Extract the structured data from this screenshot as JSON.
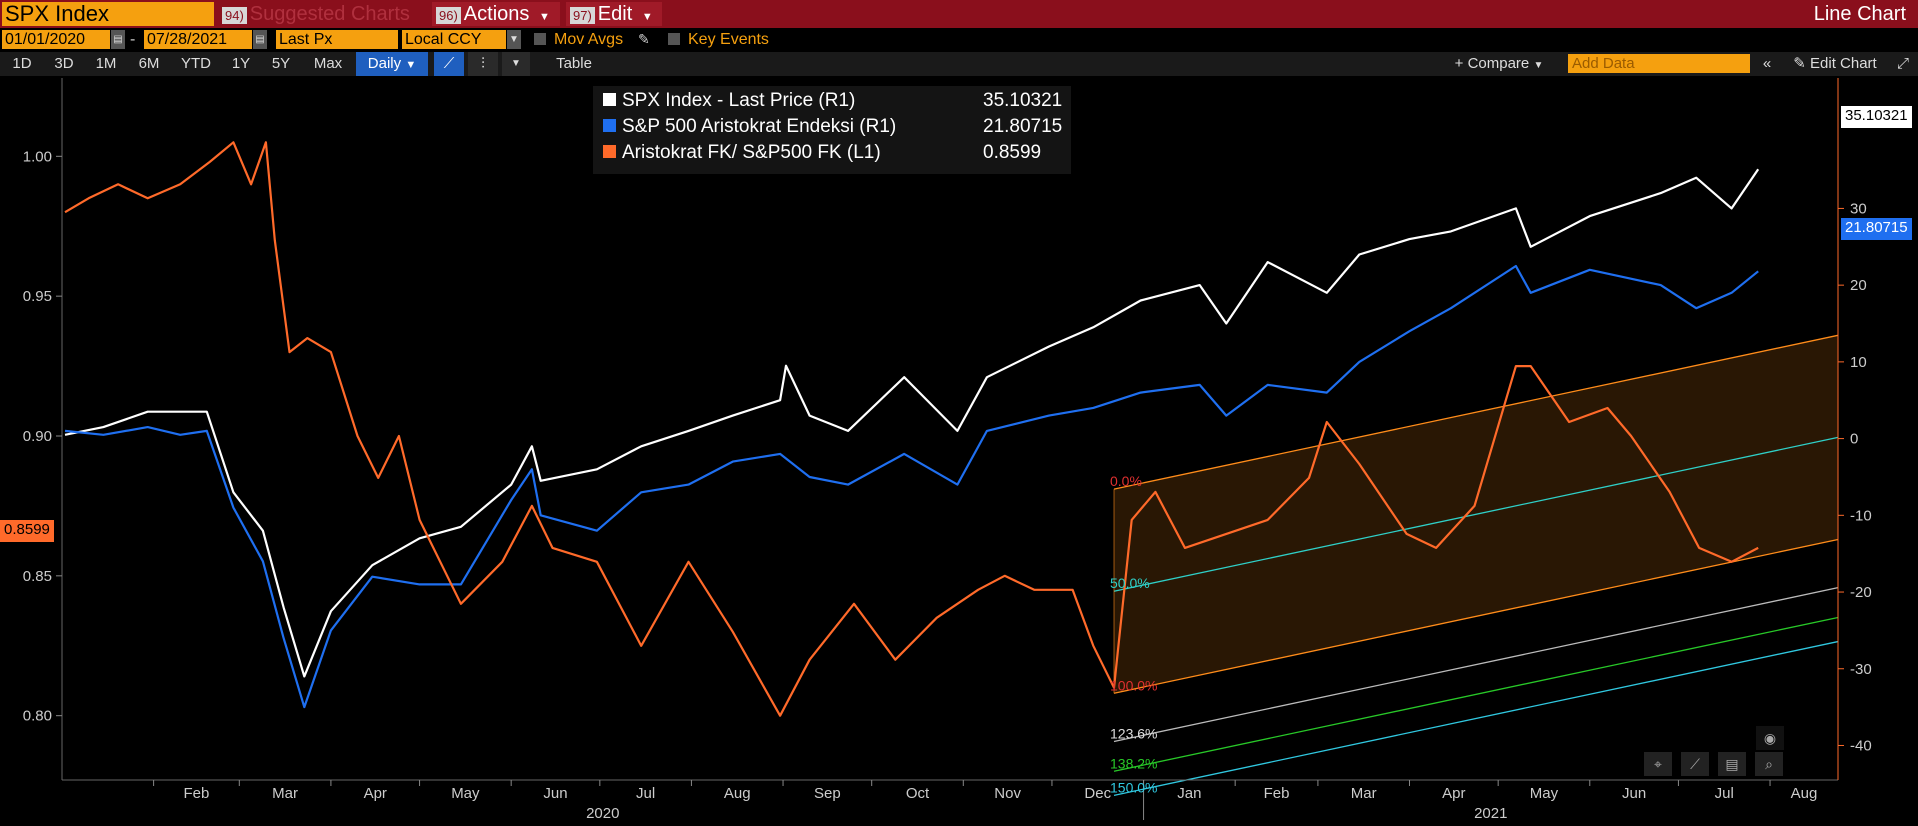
{
  "toolbar": {
    "security": "SPX Index",
    "suggested_num": "94)",
    "suggested": "Suggested Charts",
    "actions_num": "96)",
    "actions": "Actions",
    "edit_num": "97)",
    "edit": "Edit",
    "chart_type": "Line Chart"
  },
  "settings": {
    "start_date": "01/01/2020",
    "end_date": "07/28/2021",
    "dash": "-",
    "price_field": "Last Px",
    "currency": "Local CCY",
    "mov_avgs": "Mov Avgs",
    "key_events": "Key Events"
  },
  "periods": {
    "items": [
      "1D",
      "3D",
      "1M",
      "6M",
      "YTD",
      "1Y",
      "5Y",
      "Max"
    ],
    "frequency": "Daily",
    "table": "Table",
    "compare": "+ Compare",
    "add_data_placeholder": "Add Data",
    "edit_chart": "Edit Chart"
  },
  "legend": [
    {
      "label": "SPX Index - Last Price (R1)",
      "value": "35.10321",
      "color": "#ffffff"
    },
    {
      "label": "S&P 500 Aristokrat Endeksi (R1)",
      "value": "21.80715",
      "color": "#1f6ff0"
    },
    {
      "label": "Aristokrat FK/ S&P500 FK (L1)",
      "value": "0.8599",
      "color": "#ff6a2a"
    }
  ],
  "last_labels": {
    "spx": "35.10321",
    "aristo": "21.80715",
    "ratio": "0.8599"
  },
  "fib_levels": [
    "0.0%",
    "50.0%",
    "100.0%",
    "123.6%",
    "138.2%",
    "150.0%"
  ],
  "colors": {
    "spx": "#ffffff",
    "aristo": "#1f6ff0",
    "ratio": "#ff6a2a",
    "channel": "#ff8c1a",
    "brand_red": "#8a0f1c",
    "amber": "#f5a00f"
  },
  "chart_data": {
    "type": "line",
    "left_axis": {
      "ticks": [
        0.8,
        0.85,
        0.9,
        0.95,
        1.0
      ],
      "tick_labels": [
        "0.80",
        "0.85",
        "0.90",
        "0.95",
        "1.00"
      ],
      "range": [
        0.777,
        1.028
      ]
    },
    "right_axis": {
      "ticks": [
        -40,
        -30,
        -20,
        -10,
        0,
        10,
        20,
        30
      ],
      "range": [
        -44.5,
        47.0
      ]
    },
    "x_axis": {
      "months": [
        "Feb",
        "Mar",
        "Apr",
        "May",
        "Jun",
        "Jul",
        "Aug",
        "Sep",
        "Oct",
        "Nov",
        "Dec",
        "Jan",
        "Feb",
        "Mar",
        "Apr",
        "May",
        "Jun",
        "Jul",
        "Aug"
      ],
      "years": [
        "2020",
        "2021"
      ],
      "range": [
        "2020-01-01",
        "2021-08-24"
      ]
    },
    "series": [
      {
        "name": "SPX Index - Last Price (R1)",
        "axis": "right",
        "points": [
          [
            "2020-01-02",
            0.5
          ],
          [
            "2020-01-15",
            1.5
          ],
          [
            "2020-01-30",
            3.5
          ],
          [
            "2020-02-10",
            3.5
          ],
          [
            "2020-02-19",
            3.5
          ],
          [
            "2020-02-28",
            -7
          ],
          [
            "2020-03-09",
            -12
          ],
          [
            "2020-03-16",
            -22
          ],
          [
            "2020-03-23",
            -31
          ],
          [
            "2020-04-01",
            -22.5
          ],
          [
            "2020-04-15",
            -16.5
          ],
          [
            "2020-05-01",
            -13
          ],
          [
            "2020-05-15",
            -11.5
          ],
          [
            "2020-06-01",
            -6
          ],
          [
            "2020-06-08",
            -1
          ],
          [
            "2020-06-11",
            -5.5
          ],
          [
            "2020-06-30",
            -4
          ],
          [
            "2020-07-15",
            -1
          ],
          [
            "2020-07-31",
            1
          ],
          [
            "2020-08-15",
            3
          ],
          [
            "2020-08-31",
            5
          ],
          [
            "2020-09-02",
            9.5
          ],
          [
            "2020-09-10",
            3
          ],
          [
            "2020-09-23",
            1
          ],
          [
            "2020-10-12",
            8
          ],
          [
            "2020-10-30",
            1
          ],
          [
            "2020-11-09",
            8
          ],
          [
            "2020-11-30",
            12
          ],
          [
            "2020-12-15",
            14.5
          ],
          [
            "2020-12-31",
            18
          ],
          [
            "2021-01-20",
            20
          ],
          [
            "2021-01-29",
            15
          ],
          [
            "2021-02-12",
            23
          ],
          [
            "2021-03-04",
            19
          ],
          [
            "2021-03-15",
            24
          ],
          [
            "2021-04-01",
            26
          ],
          [
            "2021-04-15",
            27
          ],
          [
            "2021-05-07",
            30
          ],
          [
            "2021-05-12",
            25
          ],
          [
            "2021-06-01",
            29
          ],
          [
            "2021-06-25",
            32
          ],
          [
            "2021-07-07",
            34
          ],
          [
            "2021-07-19",
            30
          ],
          [
            "2021-07-28",
            35.1
          ]
        ]
      },
      {
        "name": "S&P 500 Aristokrat Endeksi (R1)",
        "axis": "right",
        "points": [
          [
            "2020-01-02",
            1
          ],
          [
            "2020-01-15",
            0.5
          ],
          [
            "2020-01-30",
            1.5
          ],
          [
            "2020-02-10",
            0.5
          ],
          [
            "2020-02-19",
            1
          ],
          [
            "2020-02-28",
            -9
          ],
          [
            "2020-03-09",
            -16
          ],
          [
            "2020-03-16",
            -26
          ],
          [
            "2020-03-23",
            -35
          ],
          [
            "2020-04-01",
            -25
          ],
          [
            "2020-04-15",
            -18
          ],
          [
            "2020-05-01",
            -19
          ],
          [
            "2020-05-15",
            -19
          ],
          [
            "2020-06-01",
            -8
          ],
          [
            "2020-06-08",
            -4
          ],
          [
            "2020-06-11",
            -10
          ],
          [
            "2020-06-30",
            -12
          ],
          [
            "2020-07-15",
            -7
          ],
          [
            "2020-07-31",
            -6
          ],
          [
            "2020-08-15",
            -3
          ],
          [
            "2020-08-31",
            -2
          ],
          [
            "2020-09-10",
            -5
          ],
          [
            "2020-09-23",
            -6
          ],
          [
            "2020-10-12",
            -2
          ],
          [
            "2020-10-30",
            -6
          ],
          [
            "2020-11-09",
            1
          ],
          [
            "2020-11-30",
            3
          ],
          [
            "2020-12-15",
            4
          ],
          [
            "2020-12-31",
            6
          ],
          [
            "2021-01-20",
            7
          ],
          [
            "2021-01-29",
            3
          ],
          [
            "2021-02-12",
            7
          ],
          [
            "2021-03-04",
            6
          ],
          [
            "2021-03-15",
            10
          ],
          [
            "2021-04-01",
            14
          ],
          [
            "2021-04-15",
            17
          ],
          [
            "2021-05-07",
            22.5
          ],
          [
            "2021-05-12",
            19
          ],
          [
            "2021-06-01",
            22
          ],
          [
            "2021-06-25",
            20
          ],
          [
            "2021-07-07",
            17
          ],
          [
            "2021-07-19",
            19
          ],
          [
            "2021-07-28",
            21.8
          ]
        ]
      },
      {
        "name": "Aristokrat FK/ S&P500 FK (L1)",
        "axis": "left",
        "points": [
          [
            "2020-01-02",
            0.98
          ],
          [
            "2020-01-10",
            0.985
          ],
          [
            "2020-01-20",
            0.99
          ],
          [
            "2020-01-30",
            0.985
          ],
          [
            "2020-02-10",
            0.99
          ],
          [
            "2020-02-20",
            0.998
          ],
          [
            "2020-02-28",
            1.005
          ],
          [
            "2020-03-05",
            0.99
          ],
          [
            "2020-03-10",
            1.005
          ],
          [
            "2020-03-13",
            0.97
          ],
          [
            "2020-03-18",
            0.93
          ],
          [
            "2020-03-24",
            0.935
          ],
          [
            "2020-04-01",
            0.93
          ],
          [
            "2020-04-10",
            0.9
          ],
          [
            "2020-04-17",
            0.885
          ],
          [
            "2020-04-24",
            0.9
          ],
          [
            "2020-05-01",
            0.87
          ],
          [
            "2020-05-15",
            0.84
          ],
          [
            "2020-05-29",
            0.855
          ],
          [
            "2020-06-08",
            0.875
          ],
          [
            "2020-06-15",
            0.86
          ],
          [
            "2020-06-30",
            0.855
          ],
          [
            "2020-07-15",
            0.825
          ],
          [
            "2020-07-31",
            0.855
          ],
          [
            "2020-08-15",
            0.83
          ],
          [
            "2020-08-31",
            0.8
          ],
          [
            "2020-09-10",
            0.82
          ],
          [
            "2020-09-25",
            0.84
          ],
          [
            "2020-10-09",
            0.82
          ],
          [
            "2020-10-23",
            0.835
          ],
          [
            "2020-11-06",
            0.845
          ],
          [
            "2020-11-15",
            0.85
          ],
          [
            "2020-11-25",
            0.845
          ],
          [
            "2020-12-08",
            0.845
          ],
          [
            "2020-12-15",
            0.825
          ],
          [
            "2020-12-22",
            0.81
          ],
          [
            "2020-12-28",
            0.87
          ],
          [
            "2021-01-05",
            0.88
          ],
          [
            "2021-01-15",
            0.86
          ],
          [
            "2021-01-29",
            0.865
          ],
          [
            "2021-02-12",
            0.87
          ],
          [
            "2021-02-26",
            0.885
          ],
          [
            "2021-03-04",
            0.905
          ],
          [
            "2021-03-15",
            0.89
          ],
          [
            "2021-03-31",
            0.865
          ],
          [
            "2021-04-10",
            0.86
          ],
          [
            "2021-04-23",
            0.875
          ],
          [
            "2021-05-07",
            0.925
          ],
          [
            "2021-05-12",
            0.925
          ],
          [
            "2021-05-25",
            0.905
          ],
          [
            "2021-06-07",
            0.91
          ],
          [
            "2021-06-15",
            0.9
          ],
          [
            "2021-06-28",
            0.88
          ],
          [
            "2021-07-08",
            0.86
          ],
          [
            "2021-07-19",
            0.855
          ],
          [
            "2021-07-28",
            0.86
          ]
        ]
      }
    ],
    "channel": {
      "start": [
        "2020-12-22",
        0.808
      ],
      "end": [
        "2021-08-24",
        0.863
      ],
      "top_offset": 0.073,
      "levels": [
        0.0,
        0.5,
        1.0,
        1.236,
        1.382,
        1.5
      ]
    }
  }
}
